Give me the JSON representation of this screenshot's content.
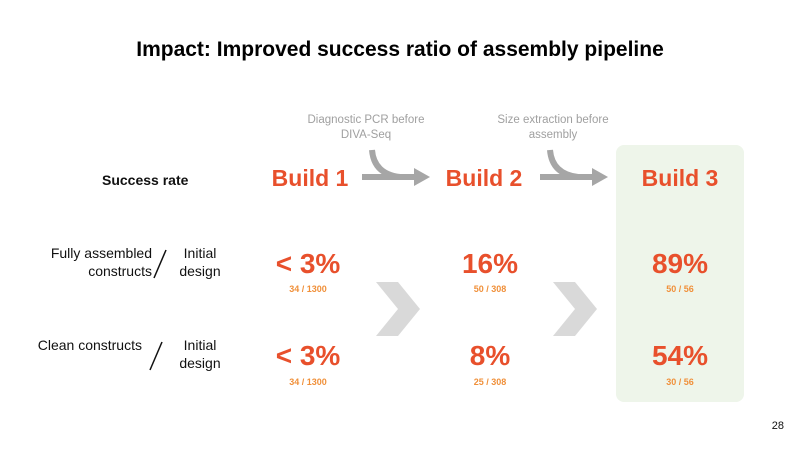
{
  "title": "Impact: Improved success ratio of assembly pipeline",
  "notes": [
    "Diagnostic PCR before DIVA-Seq",
    "Size extraction before assembly"
  ],
  "row_header": "Success rate",
  "builds": [
    "Build 1",
    "Build 2",
    "Build 3"
  ],
  "rows": [
    {
      "left": "Fully assembled constructs",
      "right": "Initial design",
      "values": [
        {
          "pct": "< 3%",
          "frac": "34 / 1300"
        },
        {
          "pct": "16%",
          "frac": "50 / 308"
        },
        {
          "pct": "89%",
          "frac": "50 / 56"
        }
      ]
    },
    {
      "left": "Clean constructs",
      "right": "Initial design",
      "values": [
        {
          "pct": "< 3%",
          "frac": "34 / 1300"
        },
        {
          "pct": "8%",
          "frac": "25 / 308"
        },
        {
          "pct": "54%",
          "frac": "30 / 56"
        }
      ]
    }
  ],
  "page_number": "28",
  "colors": {
    "accent": "#e8502c",
    "fraction": "#f0903a",
    "highlight": "#eef5ea",
    "arrow": "#a6a6a6"
  }
}
